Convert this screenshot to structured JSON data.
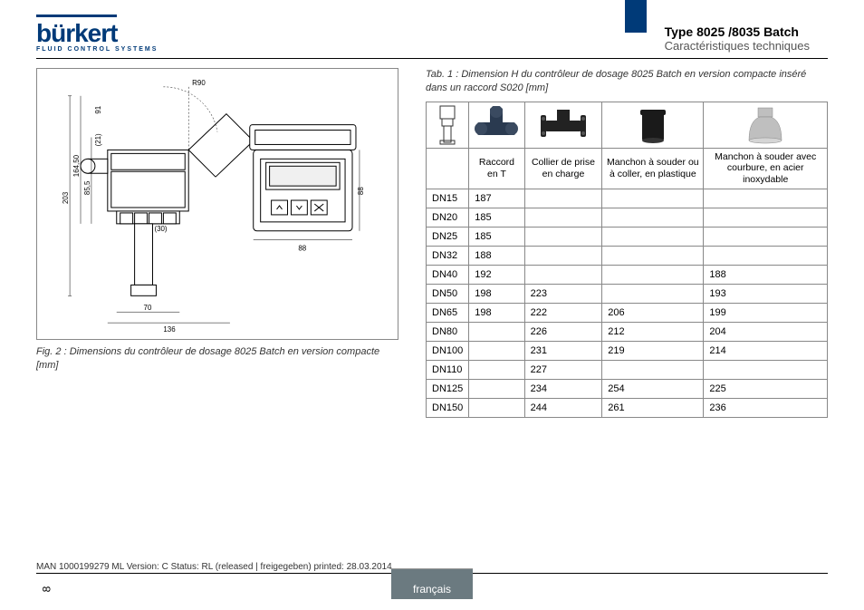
{
  "logo": {
    "main": "bürkert",
    "sub": "FLUID CONTROL SYSTEMS"
  },
  "title": {
    "main": "Type 8025 /8035 Batch",
    "sub": "Caractéristiques techniques"
  },
  "figure": {
    "num": "Fig. 2 :",
    "caption": "Dimensions du contrôleur de dosage 8025 Batch en version compacte [mm]",
    "dims": {
      "r90": "R90",
      "d91": "91",
      "d21": "(21)",
      "d855": "85,5",
      "d16450": "164,50",
      "d203": "203",
      "d30": "(30)",
      "d70": "70",
      "d136": "136",
      "d88h": "88",
      "d88w": "88"
    },
    "colors": {
      "line": "#000000",
      "fill_light": "#f5f5f5"
    }
  },
  "table": {
    "num": "Tab. 1 :",
    "caption": "Dimension H du contrôleur de dosage 8025 Batch en version compacte inséré dans un raccord S020 [mm]",
    "head": [
      "",
      "Raccord en T",
      "Collier de prise en charge",
      "Manchon à souder ou à coller, en plastique",
      "Manchon à souder avec courbure, en acier inoxydable"
    ],
    "rows": [
      [
        "DN15",
        "187",
        "",
        "",
        ""
      ],
      [
        "DN20",
        "185",
        "",
        "",
        ""
      ],
      [
        "DN25",
        "185",
        "",
        "",
        ""
      ],
      [
        "DN32",
        "188",
        "",
        "",
        ""
      ],
      [
        "DN40",
        "192",
        "",
        "",
        "188"
      ],
      [
        "DN50",
        "198",
        "223",
        "",
        "193"
      ],
      [
        "DN65",
        "198",
        "222",
        "206",
        "199"
      ],
      [
        "DN80",
        "",
        "226",
        "212",
        "204"
      ],
      [
        "DN100",
        "",
        "231",
        "219",
        "214"
      ],
      [
        "DN110",
        "",
        "227",
        "",
        ""
      ],
      [
        "DN125",
        "",
        "234",
        "254",
        "225"
      ],
      [
        "DN150",
        "",
        "244",
        "261",
        "236"
      ]
    ],
    "colors": {
      "border": "#888888",
      "text": "#000000"
    }
  },
  "footer": {
    "line": "MAN 1000199279 ML Version: C Status: RL (released | freigegeben) printed: 28.03.2014",
    "page": "8",
    "lang": "français"
  },
  "colors": {
    "brand": "#003a78",
    "footer_tab": "#6b7a80"
  }
}
